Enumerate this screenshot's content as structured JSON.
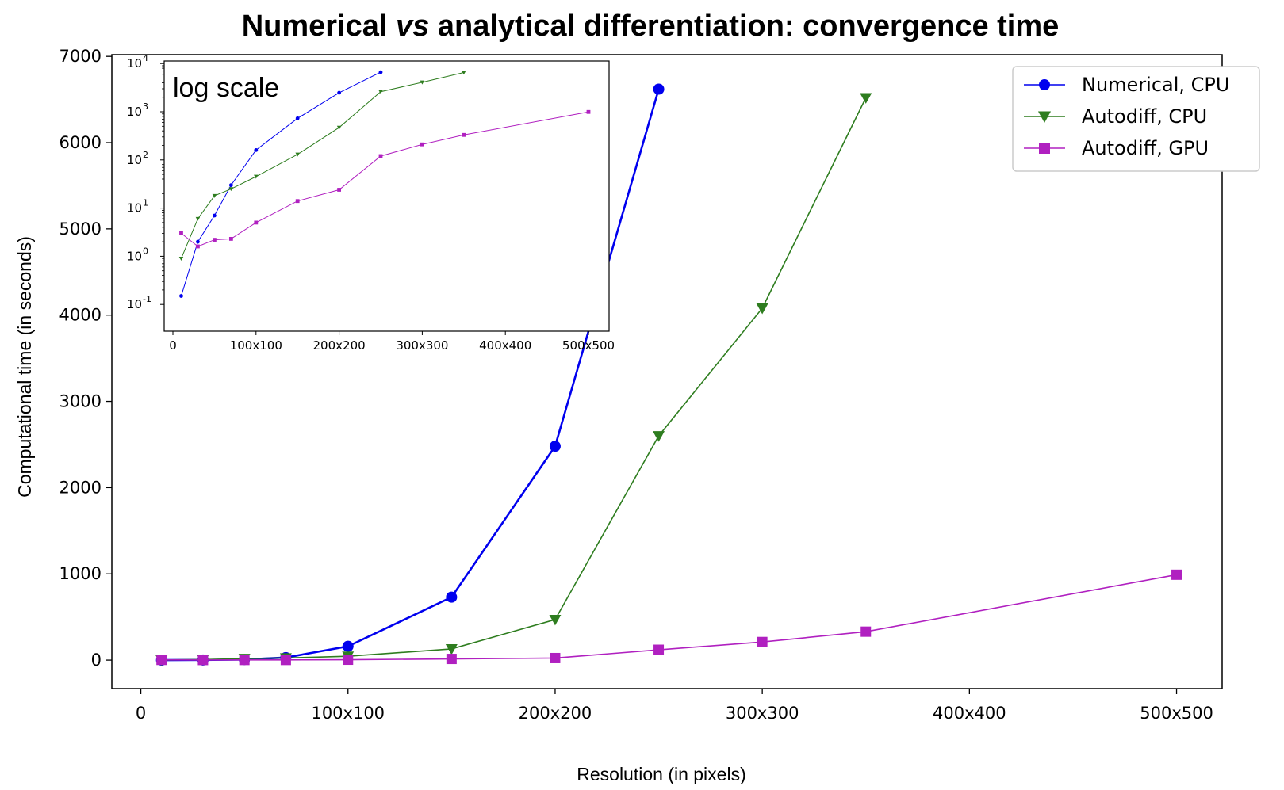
{
  "chart_data": {
    "type": "line",
    "title_parts": [
      "Numerical ",
      "vs",
      " analytical differentiation: convergence time"
    ],
    "xlabel": "Resolution (in pixels)",
    "ylabel": "Computational time (in seconds)",
    "x_tick_values": [
      0,
      100,
      200,
      300,
      400,
      500
    ],
    "x_tick_labels": [
      "0",
      "100x100",
      "200x200",
      "300x300",
      "400x400",
      "500x500"
    ],
    "y_tick_values": [
      0,
      1000,
      2000,
      3000,
      4000,
      5000,
      6000,
      7000
    ],
    "y_tick_labels": [
      "0",
      "1000",
      "2000",
      "3000",
      "4000",
      "5000",
      "6000",
      "7000"
    ],
    "xlim": [
      -14,
      522
    ],
    "ylim": [
      -330,
      7020
    ],
    "legend_position": "top-right",
    "series": [
      {
        "name": "Numerical, CPU",
        "color": "#0000ee",
        "marker": "circle",
        "x": [
          10,
          30,
          50,
          70,
          100,
          150,
          200,
          250
        ],
        "y": [
          0.15,
          2,
          7,
          30,
          160,
          730,
          2480,
          6620
        ]
      },
      {
        "name": "Autodiff, CPU",
        "color": "#2e7d1f",
        "marker": "triangle-down",
        "x": [
          10,
          30,
          50,
          70,
          100,
          150,
          200,
          250,
          300,
          350
        ],
        "y": [
          0.9,
          6,
          18,
          25,
          45,
          130,
          470,
          2600,
          4080,
          6520
        ]
      },
      {
        "name": "Autodiff, GPU",
        "color": "#b020c0",
        "marker": "square",
        "x": [
          10,
          30,
          50,
          70,
          100,
          150,
          200,
          250,
          300,
          350,
          500
        ],
        "y": [
          3,
          1.6,
          2.2,
          2.3,
          5,
          14,
          24,
          120,
          210,
          330,
          990
        ]
      }
    ],
    "inset": {
      "note": "log scale",
      "yscale": "log",
      "y_tick_exponents": [
        -1,
        0,
        1,
        2,
        3,
        4
      ],
      "y_tick_base": "10",
      "x_tick_values": [
        0,
        100,
        200,
        300,
        400,
        500
      ],
      "x_tick_labels": [
        "0",
        "100x100",
        "200x200",
        "300x300",
        "400x400",
        "500x500"
      ]
    }
  }
}
